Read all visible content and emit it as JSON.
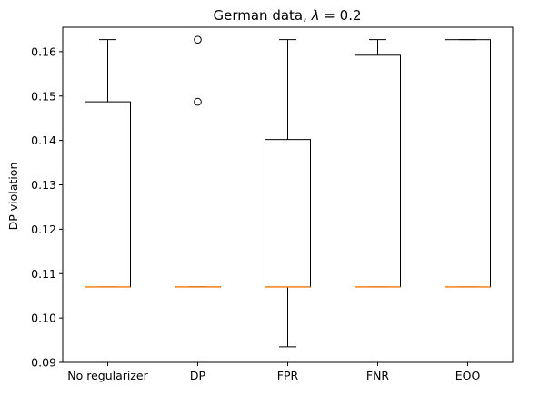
{
  "chart_data": {
    "type": "box",
    "title": "German data, λ =  0.2",
    "title_prefix": "German data, ",
    "title_symbol": "λ",
    "title_suffix": " =  0.2",
    "xlabel": "",
    "ylabel": "DP violation",
    "ylim": [
      0.09,
      0.1655
    ],
    "yticks": [
      "0.09",
      "0.10",
      "0.11",
      "0.12",
      "0.13",
      "0.14",
      "0.15",
      "0.16"
    ],
    "categories": [
      "No regularizer",
      "DP",
      "FPR",
      "FNR",
      "EOO"
    ],
    "boxes": [
      {
        "label": "No regularizer",
        "whisker_low": 0.107,
        "q1": 0.107,
        "median": 0.107,
        "q3": 0.1487,
        "whisker_high": 0.1627,
        "outliers": []
      },
      {
        "label": "DP",
        "whisker_low": 0.107,
        "q1": 0.107,
        "median": 0.107,
        "q3": 0.107,
        "whisker_high": 0.107,
        "outliers": [
          0.1487,
          0.1627
        ]
      },
      {
        "label": "FPR",
        "whisker_low": 0.0935,
        "q1": 0.107,
        "median": 0.107,
        "q3": 0.1402,
        "whisker_high": 0.1627,
        "outliers": []
      },
      {
        "label": "FNR",
        "whisker_low": 0.107,
        "q1": 0.107,
        "median": 0.107,
        "q3": 0.1592,
        "whisker_high": 0.1627,
        "outliers": []
      },
      {
        "label": "EOO",
        "whisker_low": 0.107,
        "q1": 0.107,
        "median": 0.107,
        "q3": 0.1627,
        "whisker_high": 0.1627,
        "outliers": []
      }
    ],
    "colors": {
      "box": "#000000",
      "median": "#ff7f0e",
      "background": "#ffffff"
    },
    "grid": false,
    "legend": "none"
  }
}
